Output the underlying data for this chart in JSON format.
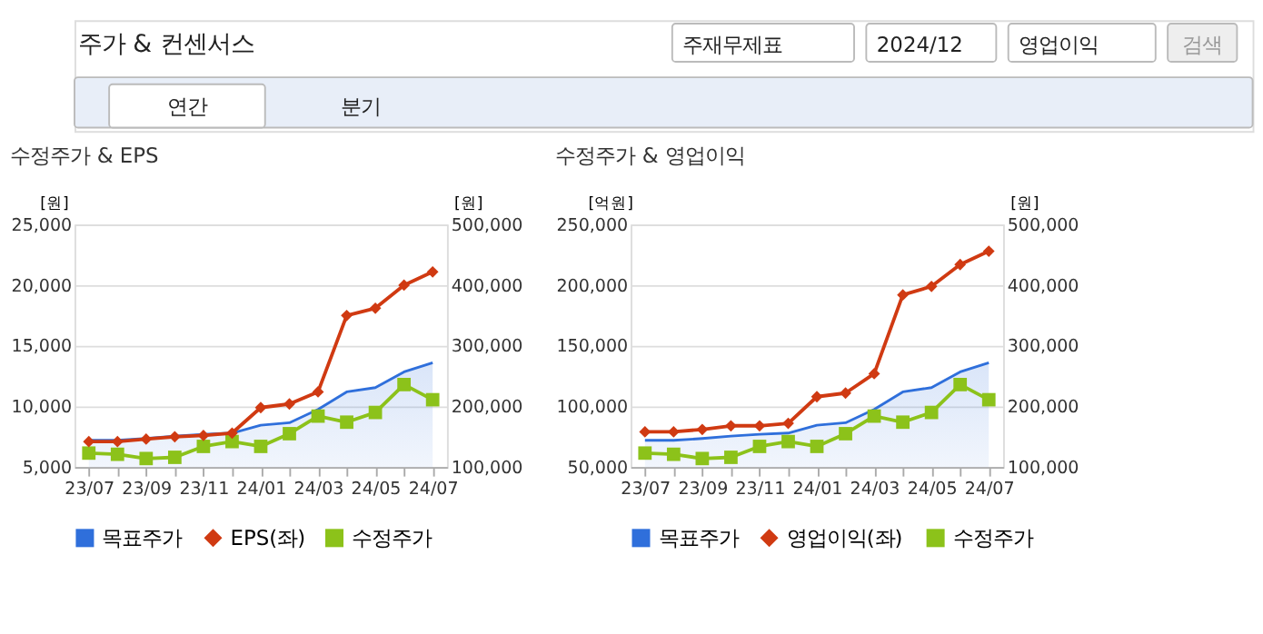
{
  "chart_data": [
    {
      "type": "line",
      "title": "수정주가 & EPS",
      "ylabel": "[원]",
      "y2label": "[원]",
      "annotations": [
        "주가 & 컨센서스",
        "주재무제표",
        "2024/12",
        "영업이익",
        "검색",
        "연간",
        "분기"
      ],
      "categories": [
        "23/07",
        null,
        "23/09",
        null,
        "23/11",
        null,
        "24/01",
        null,
        "24/03",
        null,
        "24/05",
        null,
        "24/07"
      ],
      "ylim": [
        5000,
        25000
      ],
      "yticks": [
        {
          "value": 5000,
          "label": "5,000"
        },
        {
          "value": 10000,
          "label": "10,000"
        },
        {
          "value": 15000,
          "label": "15,000"
        },
        {
          "value": 20000,
          "label": "20,000"
        },
        {
          "value": 25000,
          "label": "25,000"
        }
      ],
      "y2lim": [
        100000,
        500000
      ],
      "y2ticks": [
        {
          "value": 100000,
          "label": "100,000"
        },
        {
          "value": 200000,
          "label": "200,000"
        },
        {
          "value": 300000,
          "label": "300,000"
        },
        {
          "value": 400000,
          "label": "400,000"
        },
        {
          "value": 500000,
          "label": "500,000"
        }
      ],
      "grid": "y",
      "legend": "bottom",
      "line_style": "solid",
      "series": [
        {
          "name": "목표주가",
          "type": "area",
          "axis": "y2",
          "color": "#2f6fdb",
          "values": [
            144000,
            144000,
            147000,
            151000,
            154000,
            156000,
            169000,
            173000,
            195000,
            224000,
            231000,
            257000,
            272000
          ]
        },
        {
          "name": "EPS(좌)",
          "axis": "y",
          "marker": "diamond",
          "color": "#d03a12",
          "values": [
            7100,
            7100,
            7300,
            7500,
            7600,
            7800,
            9900,
            10200,
            11200,
            17500,
            18100,
            20000,
            21100
          ]
        },
        {
          "name": "수정주가",
          "axis": "y2",
          "marker": "square",
          "color": "#8cc21a",
          "values": [
            123000,
            121000,
            114000,
            116000,
            134000,
            142000,
            134000,
            155000,
            184000,
            174000,
            190000,
            236000,
            211000
          ]
        }
      ]
    },
    {
      "type": "line",
      "title": "수정주가 & 영업이익",
      "ylabel": "[억원]",
      "y2label": "[원]",
      "categories": [
        "23/07",
        null,
        "23/09",
        null,
        "23/11",
        null,
        "24/01",
        null,
        "24/03",
        null,
        "24/05",
        null,
        "24/07"
      ],
      "ylim": [
        50000,
        250000
      ],
      "yticks": [
        {
          "value": 50000,
          "label": "50,000"
        },
        {
          "value": 100000,
          "label": "100,000"
        },
        {
          "value": 150000,
          "label": "150,000"
        },
        {
          "value": 200000,
          "label": "200,000"
        },
        {
          "value": 250000,
          "label": "250,000"
        }
      ],
      "y2lim": [
        100000,
        500000
      ],
      "y2ticks": [
        {
          "value": 100000,
          "label": "100,000"
        },
        {
          "value": 200000,
          "label": "200,000"
        },
        {
          "value": 300000,
          "label": "300,000"
        },
        {
          "value": 400000,
          "label": "400,000"
        },
        {
          "value": 500000,
          "label": "500,000"
        }
      ],
      "grid": "y",
      "legend": "bottom",
      "line_style": "solid",
      "series": [
        {
          "name": "목표주가",
          "type": "area",
          "axis": "y2",
          "color": "#2f6fdb",
          "values": [
            144000,
            144000,
            147000,
            151000,
            154000,
            156000,
            169000,
            173000,
            195000,
            224000,
            231000,
            257000,
            272000
          ]
        },
        {
          "name": "영업이익(좌)",
          "axis": "y",
          "marker": "diamond",
          "color": "#d03a12",
          "values": [
            79000,
            79000,
            81000,
            84000,
            84000,
            86000,
            108000,
            111000,
            127000,
            192000,
            199000,
            217000,
            228000
          ]
        },
        {
          "name": "수정주가",
          "axis": "y2",
          "marker": "square",
          "color": "#8cc21a",
          "values": [
            123000,
            121000,
            114000,
            116000,
            134000,
            142000,
            134000,
            155000,
            184000,
            174000,
            190000,
            236000,
            211000
          ]
        }
      ]
    }
  ]
}
